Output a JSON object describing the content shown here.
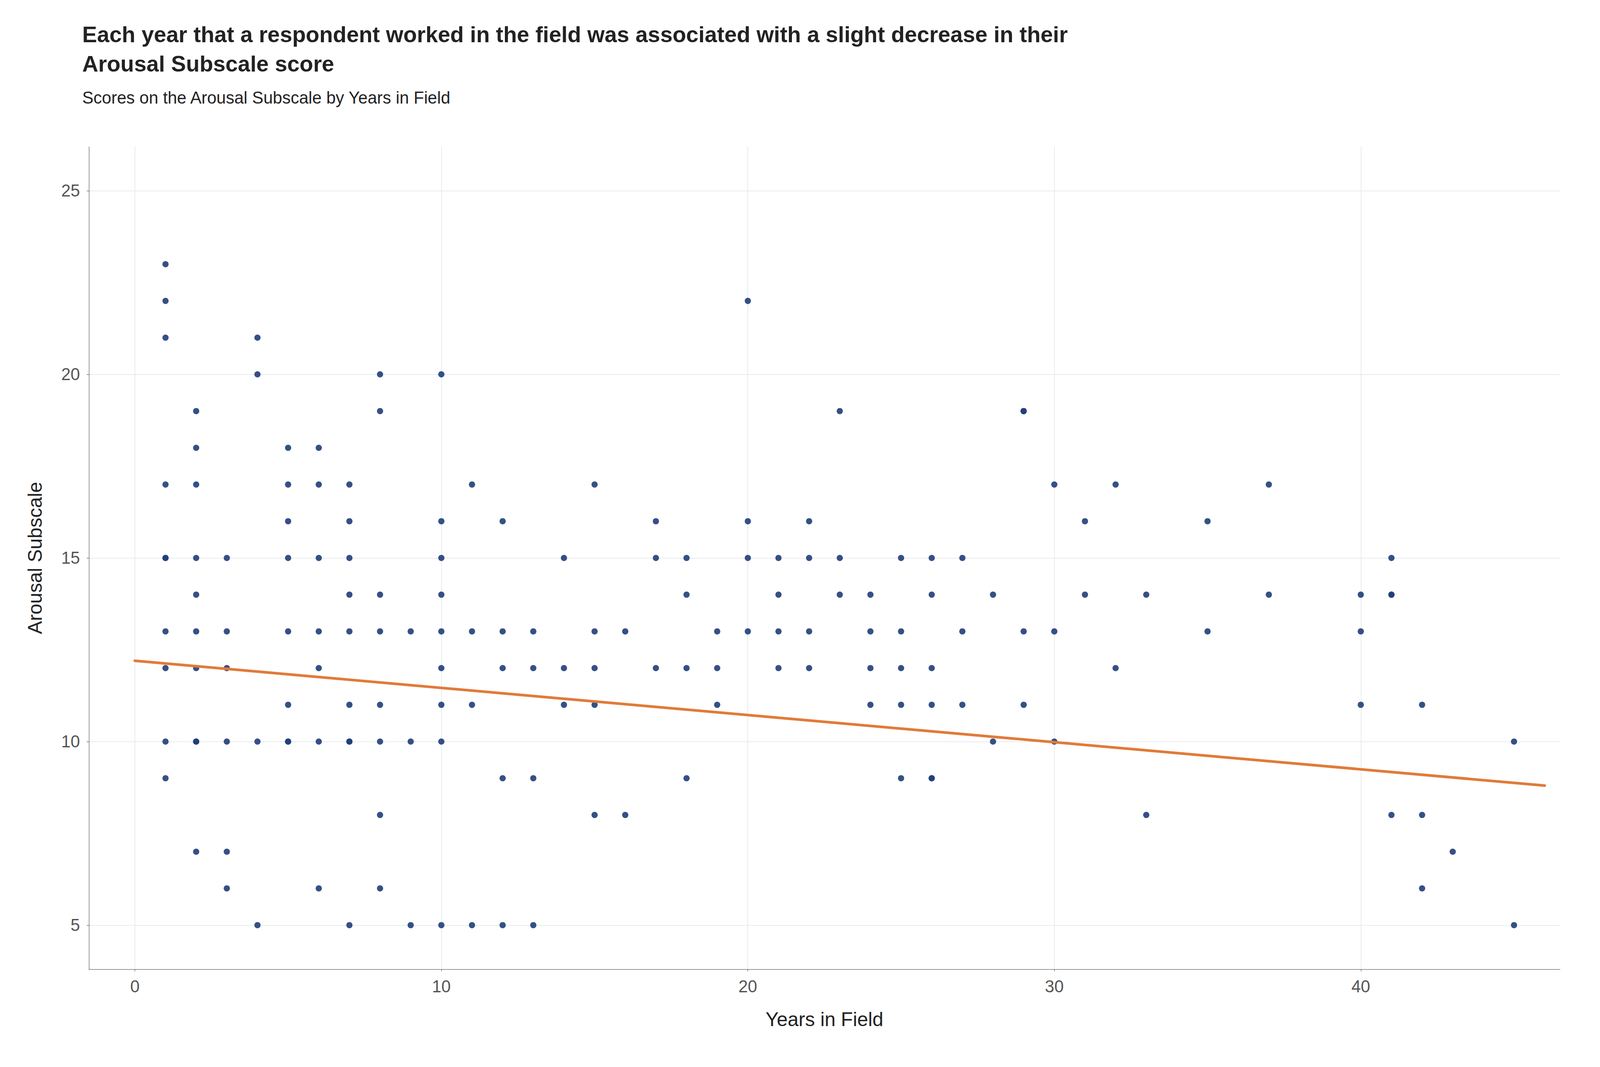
{
  "chart_data": {
    "type": "scatter",
    "title": "Each year that a respondent worked in the field was associated with a slight decrease in their\nArousal Subscale score",
    "subtitle": "Scores on the Arousal Subscale by Years in Field",
    "xlabel": "Years in Field",
    "ylabel": "Arousal Subscale",
    "xlim": [
      -1.5,
      46.5
    ],
    "ylim": [
      3.8,
      26.2
    ],
    "xticks": [
      0,
      10,
      20,
      30,
      40
    ],
    "yticks": [
      5,
      10,
      15,
      20,
      25
    ],
    "grid": true,
    "series": [
      {
        "type": "scatter",
        "color": "#1f3d7a",
        "x": [
          1,
          1,
          1,
          1,
          1,
          1,
          1,
          1,
          1,
          1,
          2,
          2,
          2,
          2,
          2,
          2,
          2,
          2,
          2,
          2,
          3,
          3,
          3,
          3,
          3,
          3,
          4,
          4,
          4,
          4,
          5,
          5,
          5,
          5,
          5,
          5,
          5,
          5,
          6,
          6,
          6,
          6,
          6,
          6,
          6,
          7,
          7,
          7,
          7,
          7,
          7,
          7,
          7,
          7,
          8,
          8,
          8,
          8,
          8,
          8,
          8,
          8,
          9,
          9,
          9,
          10,
          10,
          10,
          10,
          10,
          10,
          10,
          10,
          10,
          11,
          11,
          11,
          11,
          12,
          12,
          12,
          12,
          12,
          13,
          13,
          13,
          13,
          14,
          14,
          14,
          15,
          15,
          15,
          15,
          15,
          16,
          16,
          17,
          17,
          17,
          18,
          18,
          18,
          18,
          19,
          19,
          19,
          20,
          20,
          20,
          20,
          21,
          21,
          21,
          21,
          22,
          22,
          22,
          22,
          23,
          23,
          23,
          24,
          24,
          24,
          24,
          25,
          25,
          25,
          25,
          25,
          26,
          26,
          26,
          26,
          26,
          26,
          27,
          27,
          27,
          28,
          28,
          29,
          29,
          29,
          29,
          30,
          30,
          30,
          31,
          31,
          32,
          32,
          33,
          33,
          35,
          35,
          37,
          37,
          40,
          40,
          40,
          41,
          41,
          41,
          41,
          42,
          42,
          42,
          43,
          45,
          45
        ],
        "values": [
          23,
          22,
          21,
          17,
          15,
          15,
          13,
          12,
          10,
          9,
          19,
          18,
          17,
          15,
          14,
          13,
          12,
          10,
          10,
          7,
          15,
          13,
          12,
          10,
          7,
          6,
          21,
          20,
          10,
          5,
          18,
          17,
          16,
          15,
          13,
          11,
          10,
          10,
          18,
          17,
          15,
          13,
          12,
          10,
          6,
          17,
          16,
          15,
          14,
          13,
          11,
          10,
          10,
          5,
          20,
          19,
          14,
          13,
          11,
          10,
          8,
          6,
          13,
          10,
          5,
          20,
          16,
          15,
          14,
          13,
          12,
          11,
          10,
          5,
          17,
          13,
          11,
          5,
          16,
          13,
          12,
          9,
          5,
          13,
          12,
          9,
          5,
          15,
          12,
          11,
          17,
          13,
          12,
          11,
          8,
          13,
          8,
          16,
          15,
          12,
          15,
          14,
          12,
          9,
          13,
          12,
          11,
          22,
          16,
          15,
          13,
          15,
          14,
          13,
          12,
          16,
          15,
          13,
          12,
          19,
          15,
          14,
          14,
          13,
          12,
          11,
          15,
          13,
          12,
          11,
          9,
          15,
          14,
          12,
          11,
          9,
          9,
          15,
          13,
          11,
          14,
          10,
          19,
          19,
          13,
          11,
          17,
          13,
          10,
          16,
          14,
          17,
          12,
          14,
          8,
          16,
          13,
          17,
          14,
          14,
          13,
          11,
          15,
          14,
          14,
          8,
          11,
          8,
          6,
          7,
          10,
          5
        ]
      },
      {
        "type": "line",
        "color": "#e07b39",
        "x": [
          0,
          46
        ],
        "values": [
          12.2,
          8.8
        ]
      }
    ]
  }
}
